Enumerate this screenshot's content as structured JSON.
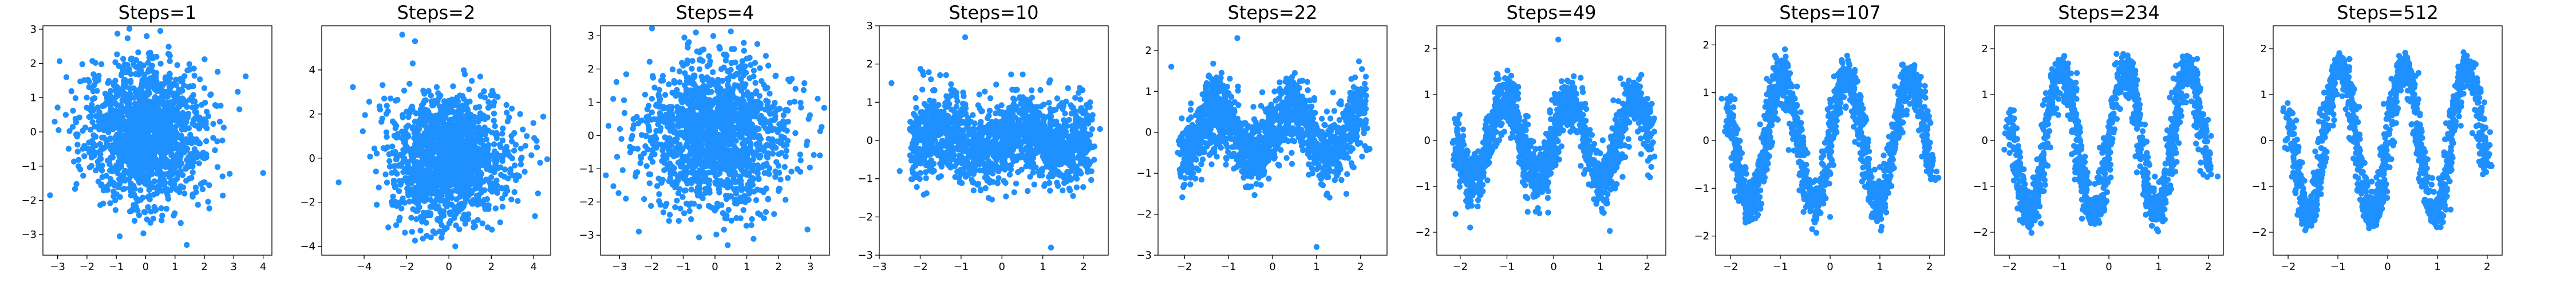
{
  "figure": {
    "point_color": "#1e90ff",
    "axes_color": "#000000",
    "background": "#ffffff"
  },
  "chart_data": [
    {
      "type": "scatter",
      "title": "Steps=1",
      "xlabel": "",
      "ylabel": "",
      "xlim": [
        -3.5,
        4.3
      ],
      "ylim": [
        -3.6,
        3.1
      ],
      "xticks": [
        -3,
        -2,
        -1,
        0,
        1,
        2,
        3,
        4
      ],
      "yticks": [
        -3,
        -2,
        -1,
        0,
        1,
        2,
        3
      ],
      "grid": false,
      "distribution": {
        "kind": "gaussian",
        "n": 1500,
        "mean": [
          0,
          0
        ],
        "std": [
          1.0,
          1.0
        ]
      },
      "visible_outliers": [
        [
          4.0,
          -1.2
        ],
        [
          -3.1,
          0.3
        ],
        [
          1.4,
          -3.3
        ],
        [
          0.5,
          2.95
        ],
        [
          -2.7,
          1.6
        ]
      ]
    },
    {
      "type": "scatter",
      "title": "Steps=2",
      "xlabel": "",
      "ylabel": "",
      "xlim": [
        -6.0,
        4.8
      ],
      "ylim": [
        -4.4,
        6.0
      ],
      "xticks": [
        -4,
        -2,
        0,
        2,
        4
      ],
      "yticks": [
        -4,
        -2,
        0,
        2,
        4
      ],
      "grid": false,
      "distribution": {
        "kind": "gaussian",
        "n": 1500,
        "mean": [
          0,
          0
        ],
        "std": [
          1.4,
          1.4
        ]
      },
      "visible_outliers": [
        [
          -2.2,
          5.6
        ],
        [
          -1.6,
          5.3
        ],
        [
          -5.2,
          -1.1
        ],
        [
          4.2,
          -1.6
        ],
        [
          0.3,
          -4.0
        ]
      ]
    },
    {
      "type": "scatter",
      "title": "Steps=4",
      "xlabel": "",
      "ylabel": "",
      "xlim": [
        -3.6,
        3.6
      ],
      "ylim": [
        -3.6,
        3.3
      ],
      "xticks": [
        -3,
        -2,
        -1,
        0,
        1,
        2,
        3
      ],
      "yticks": [
        -3,
        -2,
        -1,
        0,
        1,
        2,
        3
      ],
      "grid": false,
      "distribution": {
        "kind": "gaussian",
        "n": 1500,
        "mean": [
          0,
          0
        ],
        "std": [
          1.15,
          1.1
        ]
      },
      "visible_outliers": [
        [
          -3.2,
          1.1
        ],
        [
          3.3,
          -0.6
        ],
        [
          -0.6,
          3.1
        ],
        [
          0.4,
          -3.3
        ],
        [
          -2.8,
          -1.9
        ]
      ]
    },
    {
      "type": "scatter",
      "title": "Steps=10",
      "xlabel": "",
      "ylabel": "",
      "xlim": [
        -3.0,
        2.6
      ],
      "ylim": [
        -3.0,
        3.0
      ],
      "xticks": [
        -3,
        -2,
        -1,
        0,
        1,
        2
      ],
      "yticks": [
        -3,
        -2,
        -1,
        0,
        1,
        2,
        3
      ],
      "grid": false,
      "distribution": {
        "kind": "sine-band",
        "n": 1500,
        "x_range": [
          -2.2,
          2.2
        ],
        "amplitude": 0.25,
        "frequency": 1.0,
        "noise": 1.05
      },
      "visible_outliers": [
        [
          -2.7,
          1.5
        ],
        [
          -2.5,
          -0.8
        ],
        [
          1.2,
          -2.8
        ],
        [
          -0.9,
          2.7
        ],
        [
          2.4,
          0.3
        ]
      ]
    },
    {
      "type": "scatter",
      "title": "Steps=22",
      "xlabel": "",
      "ylabel": "",
      "xlim": [
        -2.6,
        2.6
      ],
      "ylim": [
        -3.0,
        2.6
      ],
      "xticks": [
        -2,
        -1,
        0,
        1,
        2
      ],
      "yticks": [
        -3,
        -2,
        -1,
        0,
        1,
        2
      ],
      "grid": false,
      "distribution": {
        "kind": "sine-band",
        "n": 1500,
        "x_range": [
          -2.1,
          2.1
        ],
        "amplitude": 0.55,
        "frequency": 1.2,
        "noise": 0.85
      },
      "visible_outliers": [
        [
          1.0,
          -2.8
        ],
        [
          -2.3,
          1.6
        ],
        [
          2.2,
          -0.4
        ],
        [
          -0.8,
          2.3
        ]
      ]
    },
    {
      "type": "scatter",
      "title": "Steps=49",
      "xlabel": "",
      "ylabel": "",
      "xlim": [
        -2.5,
        2.4
      ],
      "ylim": [
        -2.5,
        2.5
      ],
      "xticks": [
        -2,
        -1,
        0,
        1,
        2
      ],
      "yticks": [
        -2,
        -1,
        0,
        1,
        2
      ],
      "grid": false,
      "distribution": {
        "kind": "sine-band",
        "n": 1500,
        "x_range": [
          -2.1,
          2.1
        ],
        "amplitude": 0.9,
        "frequency": 1.45,
        "noise": 0.6
      },
      "visible_outliers": [
        [
          2.1,
          0.8
        ],
        [
          -2.1,
          -1.6
        ],
        [
          0.1,
          2.2
        ]
      ]
    },
    {
      "type": "scatter",
      "title": "Steps=107",
      "xlabel": "",
      "ylabel": "",
      "xlim": [
        -2.3,
        2.3
      ],
      "ylim": [
        -2.4,
        2.4
      ],
      "xticks": [
        -2,
        -1,
        0,
        1,
        2
      ],
      "yticks": [
        -2,
        -1,
        0,
        1,
        2
      ],
      "grid": false,
      "distribution": {
        "kind": "sine-band",
        "n": 1500,
        "x_range": [
          -2.05,
          2.05
        ],
        "amplitude": 1.35,
        "frequency": 1.55,
        "noise": 0.4
      },
      "visible_outliers": [
        [
          -2.0,
          0.4
        ],
        [
          2.0,
          -0.5
        ],
        [
          0.0,
          -1.6
        ]
      ]
    },
    {
      "type": "scatter",
      "title": "Steps=234",
      "xlabel": "",
      "ylabel": "",
      "xlim": [
        -2.3,
        2.3
      ],
      "ylim": [
        -2.5,
        2.5
      ],
      "xticks": [
        -2,
        -1,
        0,
        1,
        2
      ],
      "yticks": [
        -2,
        -1,
        0,
        1,
        2
      ],
      "grid": false,
      "distribution": {
        "kind": "sine-band",
        "n": 1500,
        "x_range": [
          -2.0,
          2.0
        ],
        "amplitude": 1.6,
        "frequency": 1.57,
        "noise": 0.3
      },
      "visible_outliers": [
        [
          -2.1,
          -0.2
        ],
        [
          2.05,
          0.1
        ]
      ]
    },
    {
      "type": "scatter",
      "title": "Steps=512",
      "xlabel": "",
      "ylabel": "",
      "xlim": [
        -2.3,
        2.3
      ],
      "ylim": [
        -2.5,
        2.5
      ],
      "xticks": [
        -2,
        -1,
        0,
        1,
        2
      ],
      "yticks": [
        -2,
        -1,
        0,
        1,
        2
      ],
      "grid": false,
      "distribution": {
        "kind": "sine-band",
        "n": 1500,
        "x_range": [
          -2.0,
          2.0
        ],
        "amplitude": 1.65,
        "frequency": 1.57,
        "noise": 0.26
      },
      "visible_outliers": [
        [
          -2.05,
          0.0
        ],
        [
          2.05,
          -0.1
        ]
      ]
    }
  ]
}
